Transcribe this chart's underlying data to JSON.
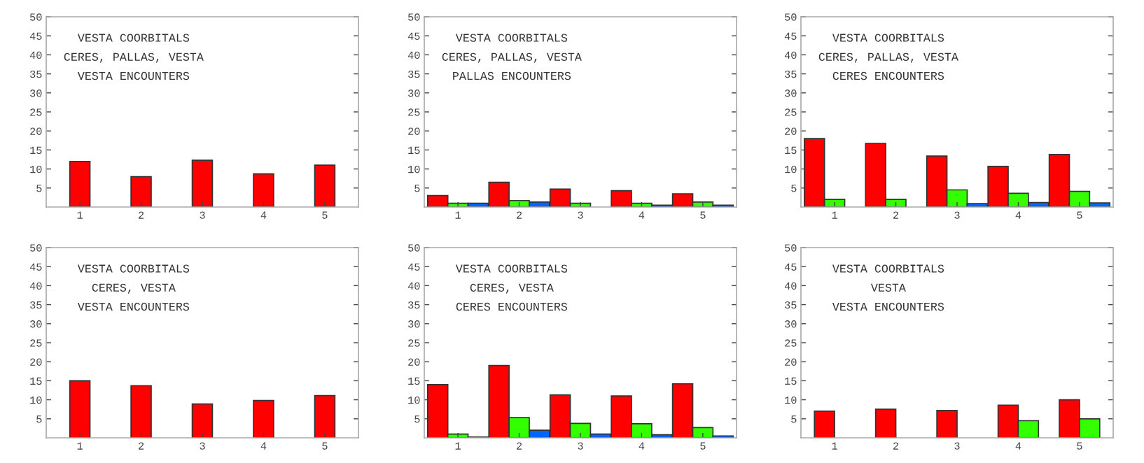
{
  "chart_data": [
    {
      "type": "bar",
      "categories": [
        "1",
        "2",
        "3",
        "4",
        "5"
      ],
      "ylim": [
        0,
        50
      ],
      "yticks": [
        5,
        10,
        15,
        20,
        25,
        30,
        35,
        40,
        45,
        50
      ],
      "grid": false,
      "annotations": [
        "VESTA COORBITALS",
        "CERES, PALLAS, VESTA",
        "VESTA ENCOUNTERS"
      ],
      "series": [
        {
          "color": "#ff0000",
          "values": [
            12,
            8,
            12.3,
            8.7,
            11
          ]
        }
      ]
    },
    {
      "type": "bar",
      "categories": [
        "1",
        "2",
        "3",
        "4",
        "5"
      ],
      "ylim": [
        0,
        50
      ],
      "yticks": [
        5,
        10,
        15,
        20,
        25,
        30,
        35,
        40,
        45,
        50
      ],
      "grid": false,
      "annotations": [
        "VESTA COORBITALS",
        "CERES, PALLAS, VESTA",
        "PALLAS ENCOUNTERS"
      ],
      "series": [
        {
          "color": "#ff0000",
          "values": [
            3,
            6.5,
            4.7,
            4.3,
            3.5
          ]
        },
        {
          "color": "#33ff00",
          "values": [
            1,
            1.7,
            1,
            1,
            1.3
          ]
        },
        {
          "color": "#0066ff",
          "values": [
            1,
            1.3,
            null,
            0.5,
            0.5
          ]
        }
      ]
    },
    {
      "type": "bar",
      "categories": [
        "1",
        "2",
        "3",
        "4",
        "5"
      ],
      "ylim": [
        0,
        50
      ],
      "yticks": [
        5,
        10,
        15,
        20,
        25,
        30,
        35,
        40,
        45,
        50
      ],
      "grid": false,
      "annotations": [
        "VESTA COORBITALS",
        "CERES, PALLAS, VESTA",
        "CERES ENCOUNTERS"
      ],
      "series": [
        {
          "color": "#ff0000",
          "values": [
            18,
            16.7,
            13.4,
            10.7,
            13.8
          ]
        },
        {
          "color": "#33ff00",
          "values": [
            2,
            2,
            4.5,
            3.6,
            4.1
          ]
        },
        {
          "color": "#0066ff",
          "values": [
            null,
            null,
            0.9,
            1.2,
            1.1
          ]
        }
      ]
    },
    {
      "type": "bar",
      "categories": [
        "1",
        "2",
        "3",
        "4",
        "5"
      ],
      "ylim": [
        0,
        50
      ],
      "yticks": [
        5,
        10,
        15,
        20,
        25,
        30,
        35,
        40,
        45,
        50
      ],
      "grid": false,
      "annotations": [
        "VESTA COORBITALS",
        "CERES, VESTA",
        "VESTA ENCOUNTERS"
      ],
      "series": [
        {
          "color": "#ff0000",
          "values": [
            15,
            13.7,
            8.9,
            9.8,
            11.1
          ]
        }
      ]
    },
    {
      "type": "bar",
      "categories": [
        "1",
        "2",
        "3",
        "4",
        "5"
      ],
      "ylim": [
        0,
        50
      ],
      "yticks": [
        5,
        10,
        15,
        20,
        25,
        30,
        35,
        40,
        45,
        50
      ],
      "grid": false,
      "annotations": [
        "VESTA COORBITALS",
        "CERES, VESTA",
        "CERES ENCOUNTERS"
      ],
      "series": [
        {
          "color": "#ff0000",
          "values": [
            14,
            19,
            11.3,
            11,
            14.2
          ]
        },
        {
          "color": "#33ff00",
          "values": [
            1,
            5.3,
            3.8,
            3.7,
            2.7
          ]
        },
        {
          "color": "#0066ff",
          "values": [
            0.2,
            2,
            1,
            0.8,
            0.5
          ]
        }
      ]
    },
    {
      "type": "bar",
      "categories": [
        "1",
        "2",
        "3",
        "4",
        "5"
      ],
      "ylim": [
        0,
        50
      ],
      "yticks": [
        5,
        10,
        15,
        20,
        25,
        30,
        35,
        40,
        45,
        50
      ],
      "grid": false,
      "annotations": [
        "VESTA COORBITALS",
        "VESTA",
        "VESTA ENCOUNTERS"
      ],
      "series": [
        {
          "color": "#ff0000",
          "values": [
            7,
            7.5,
            7.2,
            8.6,
            10
          ]
        },
        {
          "color": "#33ff00",
          "values": [
            null,
            null,
            null,
            4.5,
            5
          ]
        }
      ]
    }
  ]
}
